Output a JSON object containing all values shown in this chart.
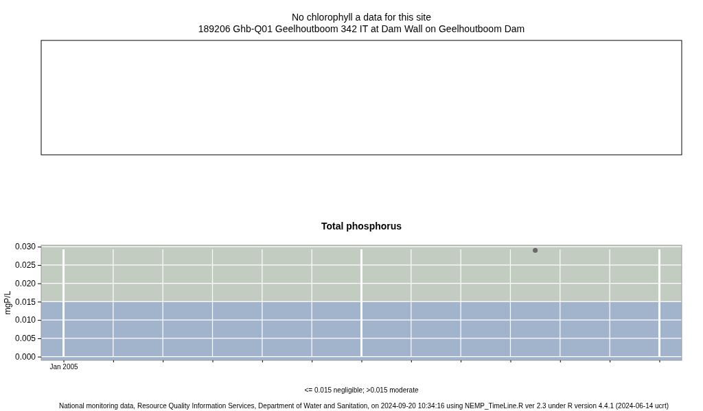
{
  "chart_data": [
    {
      "type": "other",
      "title": "No chlorophyll a data for this site",
      "subtitle": "189206 Ghb-Q01 Geelhoutboom 342 IT at Dam Wall on Geelhoutboom Dam"
    },
    {
      "type": "scatter",
      "title": "Total phosphorus",
      "ylabel": "mgP/L",
      "marker": "circle",
      "grid": true,
      "categories": [
        "Jan 2005",
        null,
        null,
        null,
        null,
        null,
        null,
        null,
        null,
        null,
        null,
        null,
        null,
        null,
        null,
        null,
        null,
        null,
        null,
        null,
        null,
        null,
        null,
        null,
        null
      ],
      "series": [
        {
          "values": [
            null,
            null,
            null,
            null,
            null,
            null,
            null,
            null,
            null,
            null,
            null,
            null,
            null,
            null,
            null,
            null,
            null,
            null,
            null,
            0.029,
            null,
            null,
            null,
            null,
            null
          ],
          "color": "#666b66"
        }
      ],
      "ylim": [
        -0.001,
        0.0304
      ],
      "yticks": [
        {
          "value": 0,
          "label": "0.000"
        },
        {
          "value": 0.005,
          "label": "0.005"
        },
        {
          "value": 0.01,
          "label": "0.010"
        },
        {
          "value": 0.015,
          "label": "0.015"
        },
        {
          "value": 0.02,
          "label": "0.020"
        },
        {
          "value": 0.025,
          "label": "0.025"
        },
        {
          "value": 0.03,
          "label": "0.030"
        }
      ],
      "bands": [
        {
          "axis": "y",
          "from": -0.001,
          "to": 0.015,
          "color": "#a2b3cc"
        },
        {
          "axis": "y",
          "from": 0.015,
          "to": 0.0304,
          "color": "#c2ccc0"
        }
      ],
      "annotations": [
        "<= 0.015 negligible; >0.015 moderate",
        "National monitoring data, Resource Quality Information Services, Department of Water and Sanitation, on 2024-09-20 10:34:16 using NEMP_TimeLine.R ver 2.3 under R version 4.4.1 (2024-06-14 ucrt)"
      ]
    }
  ]
}
